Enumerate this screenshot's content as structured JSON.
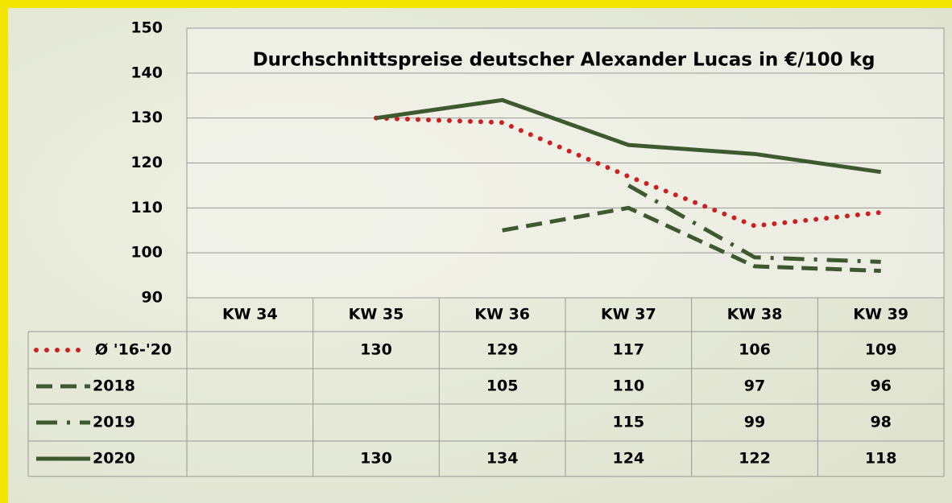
{
  "chart_data": {
    "type": "line",
    "title": "Durchschnittspreise deutscher Alexander Lucas in €/100 kg",
    "categories": [
      "KW 34",
      "KW 35",
      "KW 36",
      "KW 37",
      "KW 38",
      "KW 39"
    ],
    "series": [
      {
        "name": "Ø '16-'20",
        "color": "#cc2020",
        "values": [
          null,
          130,
          129,
          117,
          106,
          109
        ]
      },
      {
        "name": "2018",
        "color": "#3d5a2f",
        "values": [
          null,
          null,
          105,
          110,
          97,
          96
        ]
      },
      {
        "name": "2019",
        "color": "#3d5a2f",
        "values": [
          null,
          null,
          null,
          115,
          99,
          98
        ]
      },
      {
        "name": "2020",
        "color": "#3d5a2f",
        "values": [
          null,
          130,
          134,
          124,
          122,
          118
        ]
      }
    ],
    "ylim": [
      90,
      150
    ],
    "yticks": [
      90,
      100,
      110,
      120,
      130,
      140,
      150
    ],
    "grid": true
  }
}
